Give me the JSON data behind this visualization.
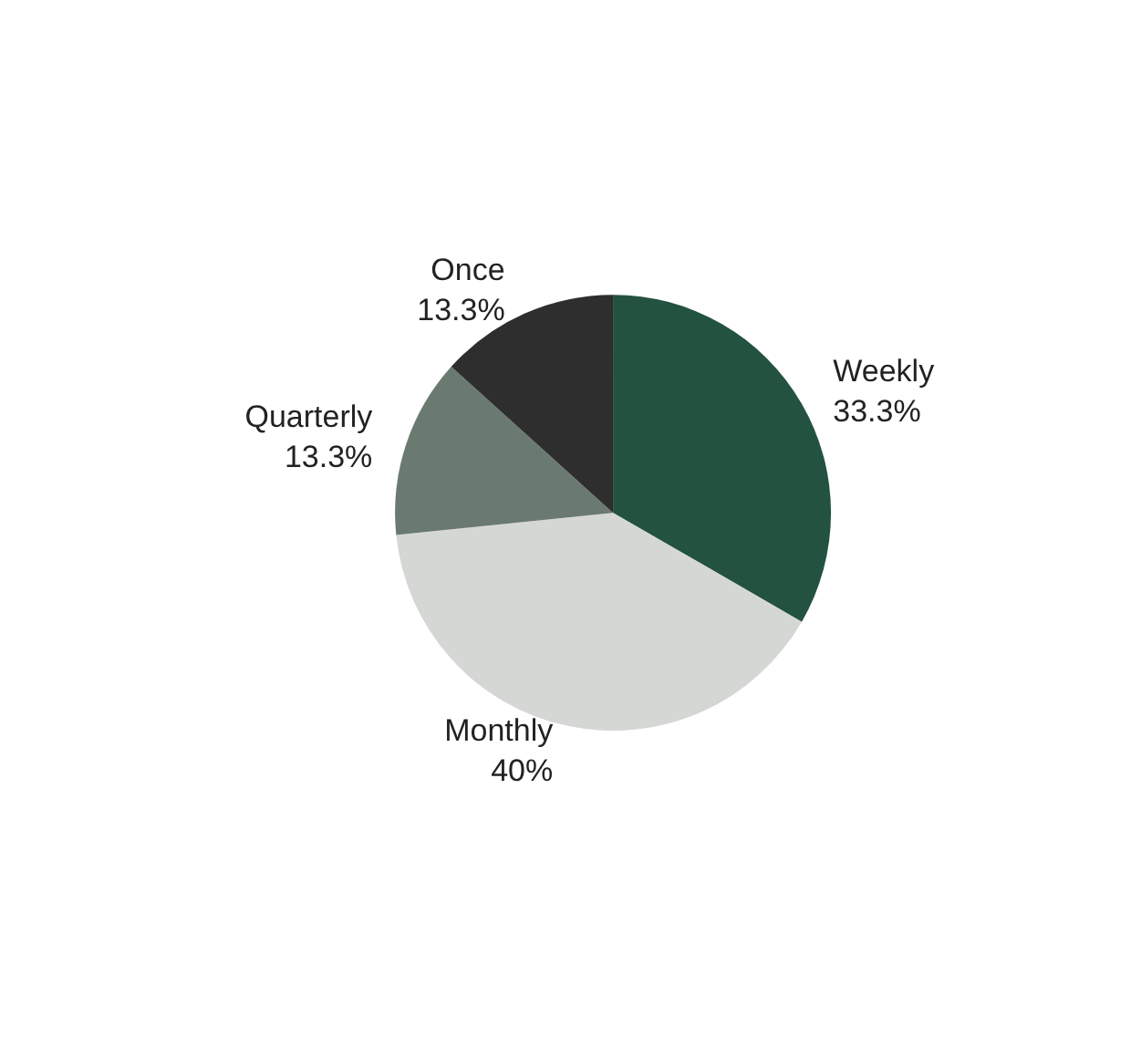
{
  "chart_data": {
    "type": "pie",
    "categories": [
      "Weekly",
      "Monthly",
      "Quarterly",
      "Once"
    ],
    "values": [
      33.3,
      40,
      13.3,
      13.3
    ],
    "value_labels": [
      "33.3%",
      "40%",
      "13.3%",
      "13.3%"
    ],
    "colors": [
      "#245240",
      "#d5d7d5",
      "#6b7a70",
      "#2e2e2e"
    ],
    "legend": false
  }
}
